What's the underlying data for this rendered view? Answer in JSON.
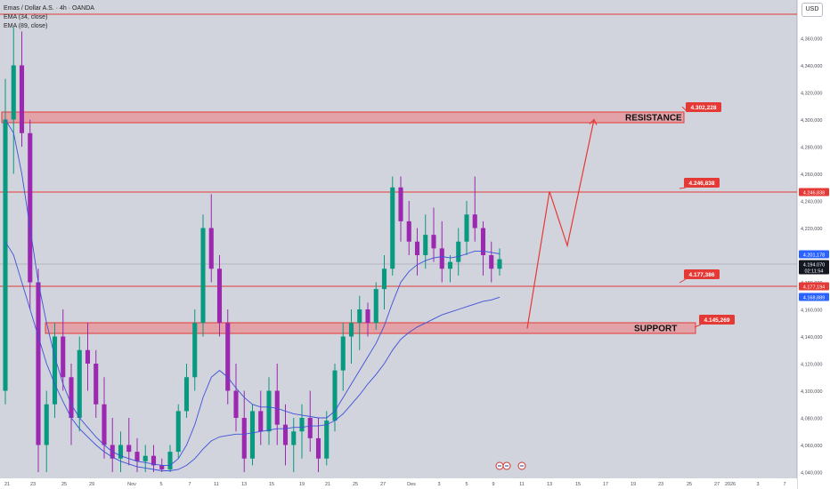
{
  "header": {
    "symbol_title": "Emas / Dollar A.S. · 4h · OANDA",
    "indicator_1": "EMA (34, close)",
    "indicator_2": "EMA (89, close)",
    "currency_button": "USD"
  },
  "colors": {
    "background": "#d1d4dc",
    "level_line": "#e53935",
    "zone_fill": "#e3a1a8",
    "ema_line": "#3f51d8",
    "candle_up": "#089981",
    "candle_down": "#9c27b0",
    "current_price_tag": "#131722",
    "ema89_tag": "#2962ff"
  },
  "chart_data": {
    "type": "candlestick",
    "title": "Emas / Dollar A.S. · 4h · OANDA",
    "y_axis_ticks": [
      "4,360,000",
      "4,340,000",
      "4,320,000",
      "4,300,000",
      "4,280,000",
      "4,260,000",
      "4,240,000",
      "4,220,000",
      "4,200,000",
      "4,180,000",
      "4,160,000",
      "4,140,000",
      "4,120,000",
      "4,100,000",
      "4,080,000",
      "4,060,000",
      "4,040,000"
    ],
    "x_axis_ticks": [
      "21",
      "23",
      "25",
      "29",
      "Nov",
      "5",
      "7",
      "11",
      "13",
      "15",
      "19",
      "21",
      "25",
      "27",
      "Des",
      "3",
      "5",
      "9",
      "11",
      "13",
      "15",
      "17",
      "19",
      "23",
      "25",
      "27",
      "2026",
      "3",
      "7"
    ],
    "ylim": [
      4040,
      4370
    ],
    "price_lines": [
      {
        "name": "top",
        "value": 4.368
      },
      {
        "name": "level-4246",
        "value": 4246.838
      },
      {
        "name": "level-4177",
        "value": 4177.194
      }
    ],
    "zones": [
      {
        "label": "RESISTANCE",
        "from": 4298,
        "to": 4307
      },
      {
        "label": "SUPPORT",
        "from": 4140,
        "to": 4149
      }
    ],
    "callouts": [
      "4.302,228",
      "4.246,838",
      "4.177,386",
      "4.145,269"
    ],
    "axis_tags": [
      {
        "text": "4.246,838",
        "color": "#e53935"
      },
      {
        "text": "4.201,178",
        "color": "#2962ff"
      },
      {
        "text": "4.194,070",
        "color": "#131722"
      },
      {
        "text": "02:11:54",
        "color": "#131722"
      },
      {
        "text": "4.177,194",
        "color": "#e53935"
      },
      {
        "text": "4.168,889",
        "color": "#2962ff"
      }
    ],
    "ohlc": [
      [
        4100,
        4330,
        4090,
        4300
      ],
      [
        4300,
        4368,
        4260,
        4340
      ],
      [
        4340,
        4365,
        4280,
        4290
      ],
      [
        4290,
        4300,
        4160,
        4180
      ],
      [
        4180,
        4190,
        4040,
        4060
      ],
      [
        4060,
        4100,
        4040,
        4090
      ],
      [
        4090,
        4150,
        4080,
        4140
      ],
      [
        4140,
        4160,
        4100,
        4110
      ],
      [
        4110,
        4120,
        4060,
        4080
      ],
      [
        4080,
        4140,
        4070,
        4130
      ],
      [
        4130,
        4150,
        4100,
        4120
      ],
      [
        4120,
        4130,
        4080,
        4090
      ],
      [
        4090,
        4110,
        4050,
        4060
      ],
      [
        4060,
        4080,
        4040,
        4050
      ],
      [
        4050,
        4070,
        4040,
        4060
      ],
      [
        4060,
        4080,
        4045,
        4055
      ],
      [
        4055,
        4065,
        4040,
        4048
      ],
      [
        4048,
        4060,
        4040,
        4052
      ],
      [
        4052,
        4060,
        4040,
        4045
      ],
      [
        4045,
        4050,
        4040,
        4042
      ],
      [
        4042,
        4060,
        4040,
        4055
      ],
      [
        4055,
        4090,
        4050,
        4085
      ],
      [
        4085,
        4120,
        4080,
        4110
      ],
      [
        4110,
        4160,
        4100,
        4150
      ],
      [
        4150,
        4230,
        4140,
        4220
      ],
      [
        4220,
        4245,
        4180,
        4190
      ],
      [
        4190,
        4200,
        4140,
        4150
      ],
      [
        4150,
        4160,
        4090,
        4100
      ],
      [
        4100,
        4120,
        4070,
        4080
      ],
      [
        4080,
        4100,
        4040,
        4050
      ],
      [
        4050,
        4090,
        4045,
        4085
      ],
      [
        4085,
        4100,
        4060,
        4070
      ],
      [
        4070,
        4110,
        4060,
        4100
      ],
      [
        4100,
        4120,
        4060,
        4075
      ],
      [
        4075,
        4090,
        4045,
        4060
      ],
      [
        4060,
        4080,
        4040,
        4070
      ],
      [
        4070,
        4090,
        4050,
        4080
      ],
      [
        4080,
        4100,
        4055,
        4065
      ],
      [
        4065,
        4080,
        4040,
        4050
      ],
      [
        4050,
        4085,
        4045,
        4078
      ],
      [
        4078,
        4120,
        4070,
        4115
      ],
      [
        4115,
        4150,
        4100,
        4140
      ],
      [
        4140,
        4160,
        4120,
        4150
      ],
      [
        4150,
        4170,
        4130,
        4160
      ],
      [
        4160,
        4165,
        4140,
        4150
      ],
      [
        4150,
        4180,
        4145,
        4175
      ],
      [
        4175,
        4200,
        4160,
        4190
      ],
      [
        4190,
        4258,
        4185,
        4250
      ],
      [
        4250,
        4258,
        4210,
        4225
      ],
      [
        4225,
        4240,
        4200,
        4210
      ],
      [
        4210,
        4220,
        4185,
        4200
      ],
      [
        4200,
        4230,
        4190,
        4215
      ],
      [
        4215,
        4235,
        4195,
        4205
      ],
      [
        4205,
        4225,
        4180,
        4190
      ],
      [
        4190,
        4200,
        4180,
        4195
      ],
      [
        4195,
        4220,
        4185,
        4210
      ],
      [
        4210,
        4240,
        4200,
        4230
      ],
      [
        4230,
        4258,
        4210,
        4220
      ],
      [
        4220,
        4225,
        4185,
        4200
      ],
      [
        4200,
        4210,
        4180,
        4190
      ],
      [
        4190,
        4205,
        4185,
        4197
      ]
    ],
    "ema34": [
      4300,
      4290,
      4260,
      4220,
      4180,
      4150,
      4125,
      4105,
      4090,
      4080,
      4073,
      4066,
      4060,
      4055,
      4052,
      4050,
      4048,
      4047,
      4046,
      4045,
      4045,
      4050,
      4060,
      4075,
      4095,
      4110,
      4115,
      4110,
      4102,
      4095,
      4090,
      4088,
      4088,
      4087,
      4085,
      4083,
      4082,
      4081,
      4080,
      4080,
      4085,
      4095,
      4105,
      4115,
      4125,
      4135,
      4148,
      4165,
      4180,
      4188,
      4193,
      4196,
      4198,
      4199,
      4198,
      4199,
      4201,
      4203,
      4203,
      4202,
      4201
    ],
    "ema89": [
      4210,
      4200,
      4180,
      4160,
      4140,
      4120,
      4105,
      4092,
      4080,
      4072,
      4066,
      4060,
      4055,
      4051,
      4048,
      4046,
      4044,
      4043,
      4042,
      4041,
      4041,
      4042,
      4045,
      4050,
      4057,
      4063,
      4066,
      4067,
      4068,
      4068,
      4069,
      4070,
      4071,
      4072,
      4072,
      4073,
      4073,
      4074,
      4074,
      4075,
      4078,
      4083,
      4090,
      4097,
      4105,
      4112,
      4120,
      4130,
      4138,
      4143,
      4147,
      4150,
      4153,
      4156,
      4158,
      4160,
      4162,
      4164,
      4166,
      4167,
      4169
    ],
    "projection": [
      {
        "label": "start",
        "value": 4146
      },
      {
        "label": "peak-1",
        "value": 4247
      },
      {
        "label": "pullback",
        "value": 4207
      },
      {
        "label": "target",
        "value": 4300
      }
    ]
  }
}
